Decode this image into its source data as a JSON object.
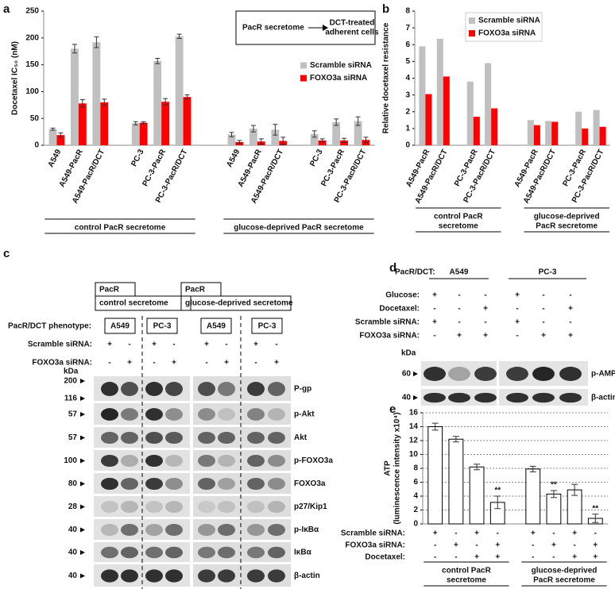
{
  "panel_letters": [
    "a",
    "b",
    "c",
    "d",
    "e"
  ],
  "chart_data": [
    {
      "type": "bar",
      "y_label": "Docetaxel IC₅₀ (nM)",
      "categories": [
        "A549",
        "A549-PacR",
        "A549-PacR/DCT",
        "PC-3",
        "PC-3-PacR",
        "PC-3-PacR/DCT",
        "A549",
        "A549-PacR",
        "A549-PacR/DCT",
        "PC-3",
        "PC-3-PacR",
        "PC-3-PacR/DCT"
      ],
      "series": [
        {
          "name": "Scramble siRNA",
          "color": "#c0c0c0",
          "values": [
            30,
            180,
            192,
            41,
            157,
            203,
            20,
            31,
            29,
            21,
            43,
            45
          ],
          "errors": [
            2,
            8,
            10,
            3,
            5,
            4,
            4,
            6,
            10,
            6,
            6,
            8
          ]
        },
        {
          "name": "FOXO3a siRNA",
          "color": "#ff0000",
          "values": [
            19,
            78,
            80,
            42,
            81,
            90,
            6,
            7,
            8,
            9,
            9,
            10
          ],
          "errors": [
            4,
            7,
            6,
            2,
            6,
            4,
            3,
            5,
            7,
            3,
            4,
            5
          ]
        }
      ],
      "ylim": [
        0,
        250
      ],
      "yticks": [
        0,
        50,
        100,
        150,
        200,
        250
      ],
      "grid": false,
      "legend": "center right",
      "group_labels": [
        "control PacR secretome",
        "glucose-deprived PacR secretome"
      ],
      "annotation": {
        "from": "PacR secretome",
        "to": [
          "DCT-treated",
          "adherent cells"
        ]
      }
    },
    {
      "type": "bar",
      "y_label": "Relative docetaxel resistance",
      "categories": [
        "A549-PacR",
        "A549-PacR/DCT",
        "PC-3-PacR",
        "PC-3-PacR/DCT",
        "A549-PacR",
        "A549-PacR/DCT",
        "PC-3-PacR",
        "PC-3-PacR/DCT"
      ],
      "series": [
        {
          "name": "Scramble siRNA",
          "color": "#c0c0c0",
          "values": [
            5.9,
            6.35,
            3.8,
            4.9,
            1.5,
            1.45,
            2.0,
            2.1
          ]
        },
        {
          "name": "FOXO3a siRNA",
          "color": "#ff0000",
          "values": [
            3.05,
            4.1,
            1.7,
            2.2,
            1.2,
            1.4,
            1.0,
            1.1
          ]
        }
      ],
      "ylim": [
        0,
        8
      ],
      "yticks": [
        0,
        1,
        2,
        3,
        4,
        5,
        6,
        7,
        8
      ],
      "grid": false,
      "legend": "upper right",
      "group_labels": [
        [
          "control PacR",
          "secretome"
        ],
        [
          "glucose-deprived",
          "PacR secretome"
        ]
      ]
    },
    {
      "type": "bar",
      "y_label": [
        "ATP",
        "(luminescence intensity x10⁴)"
      ],
      "values": [
        14.0,
        12.2,
        8.2,
        3.1,
        7.9,
        4.3,
        4.9,
        0.8
      ],
      "errors": [
        0.5,
        0.4,
        0.4,
        0.9,
        0.4,
        0.5,
        0.8,
        0.6
      ],
      "color": "#ffffff",
      "ylim": [
        0,
        16
      ],
      "yticks": [
        0,
        2,
        4,
        6,
        8,
        10,
        12,
        14,
        16
      ],
      "grid": true,
      "significance": [
        {
          "index": 3,
          "label": "**"
        },
        {
          "index": 5,
          "label": "**"
        },
        {
          "index": 7,
          "label": "**"
        }
      ],
      "conditions": [
        {
          "name": "Scramble siRNA:",
          "signs": [
            "+",
            "-",
            "+",
            "-",
            "+",
            "-",
            "+",
            "-"
          ]
        },
        {
          "name": "FOXO3a siRNA:",
          "signs": [
            "-",
            "+",
            "-",
            "+",
            "-",
            "+",
            "-",
            "+"
          ]
        },
        {
          "name": "Docetaxel:",
          "signs": [
            "-",
            "-",
            "+",
            "+",
            "-",
            "-",
            "+",
            "+"
          ]
        }
      ],
      "group_labels": [
        [
          "control PacR",
          "secretome"
        ],
        [
          "glucose-deprived",
          "PacR secretome"
        ]
      ]
    }
  ],
  "blot_c": {
    "headers": [
      {
        "top": "PacR",
        "bottom": "control secretome"
      },
      {
        "top": "PacR",
        "bottom": "glucose-deprived secretome"
      }
    ],
    "phenotype_label": "PacR/DCT phenotype:",
    "phenotypes": [
      "A549",
      "PC-3",
      "A549",
      "PC-3"
    ],
    "rows": [
      {
        "name": "Scramble siRNA:",
        "signs": [
          "+",
          "-",
          "+",
          "-",
          "+",
          "-",
          "+",
          "-"
        ]
      },
      {
        "name": "FOXO3a siRNA:",
        "signs": [
          "-",
          "+",
          "-",
          "+",
          "-",
          "+",
          "-",
          "+"
        ]
      }
    ],
    "kda_label": "kDa",
    "proteins": [
      {
        "name": "P-gp",
        "kda": [
          "200",
          "116"
        ]
      },
      {
        "name": "p-Akt",
        "kda": [
          "57"
        ]
      },
      {
        "name": "Akt",
        "kda": [
          "57"
        ]
      },
      {
        "name": "p-FOXO3a",
        "kda": [
          "100"
        ]
      },
      {
        "name": "FOXO3a",
        "kda": [
          "80"
        ]
      },
      {
        "name": "p27/Kip1",
        "kda": [
          "28"
        ]
      },
      {
        "name": "p-IκBα",
        "kda": [
          "40"
        ]
      },
      {
        "name": "IκBα",
        "kda": [
          "40"
        ]
      },
      {
        "name": "β-actin",
        "kda": [
          "40"
        ]
      }
    ]
  },
  "blot_d": {
    "title_label": "PacR/DCT:",
    "cell_lines": [
      "A549",
      "PC-3"
    ],
    "rows": [
      {
        "name": "Glucose:",
        "signs": [
          "+",
          "-",
          "-",
          "+",
          "-",
          "-"
        ]
      },
      {
        "name": "Docetaxel:",
        "signs": [
          "-",
          "-",
          "+",
          "-",
          "-",
          "+"
        ]
      },
      {
        "name": "Scramble siRNA:",
        "signs": [
          "+",
          "-",
          "-",
          "+",
          "-",
          "-"
        ]
      },
      {
        "name": "FOXO3a siRNA:",
        "signs": [
          "-",
          "+",
          "+",
          "-",
          "+",
          "+"
        ]
      }
    ],
    "kda_label": "kDa",
    "proteins": [
      {
        "name": "p-AMPK-α",
        "kda": [
          "60"
        ]
      },
      {
        "name": "β-actin",
        "kda": [
          "40"
        ]
      }
    ]
  }
}
